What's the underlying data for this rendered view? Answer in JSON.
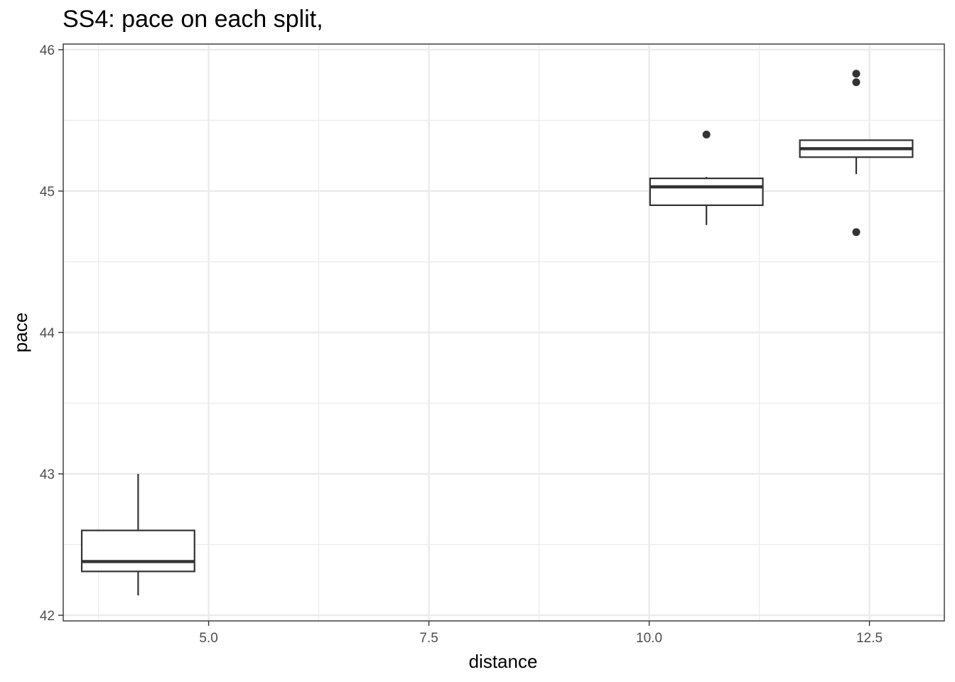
{
  "chart_data": {
    "type": "boxplot",
    "title": "SS4: pace on each split,",
    "xlabel": "distance",
    "ylabel": "pace",
    "xlim": [
      3.35,
      13.35
    ],
    "ylim": [
      41.96,
      46.04
    ],
    "x_ticks": [
      5.0,
      7.5,
      10.0,
      12.5
    ],
    "x_tick_labels": [
      "5.0",
      "7.5",
      "10.0",
      "12.5"
    ],
    "y_ticks": [
      42,
      43,
      44,
      45,
      46
    ],
    "y_tick_labels": [
      "42",
      "43",
      "44",
      "45",
      "46"
    ],
    "grid": true,
    "boxes": [
      {
        "x": 4.2,
        "width": 1.28,
        "whisker_low": 42.14,
        "q1": 42.31,
        "median": 42.38,
        "q3": 42.6,
        "whisker_high": 43.0,
        "outliers": []
      },
      {
        "x": 10.65,
        "width": 1.28,
        "whisker_low": 44.76,
        "q1": 44.9,
        "median": 45.03,
        "q3": 45.09,
        "whisker_high": 45.1,
        "outliers": [
          45.4
        ]
      },
      {
        "x": 12.35,
        "width": 1.28,
        "whisker_low": 45.12,
        "q1": 45.24,
        "median": 45.3,
        "q3": 45.36,
        "whisker_high": 45.36,
        "outliers": [
          44.71,
          45.77,
          45.83
        ]
      }
    ],
    "colors": {
      "line": "#333333",
      "grid": "#ebebeb",
      "panel_border": "#333333",
      "background": "#ffffff"
    }
  }
}
